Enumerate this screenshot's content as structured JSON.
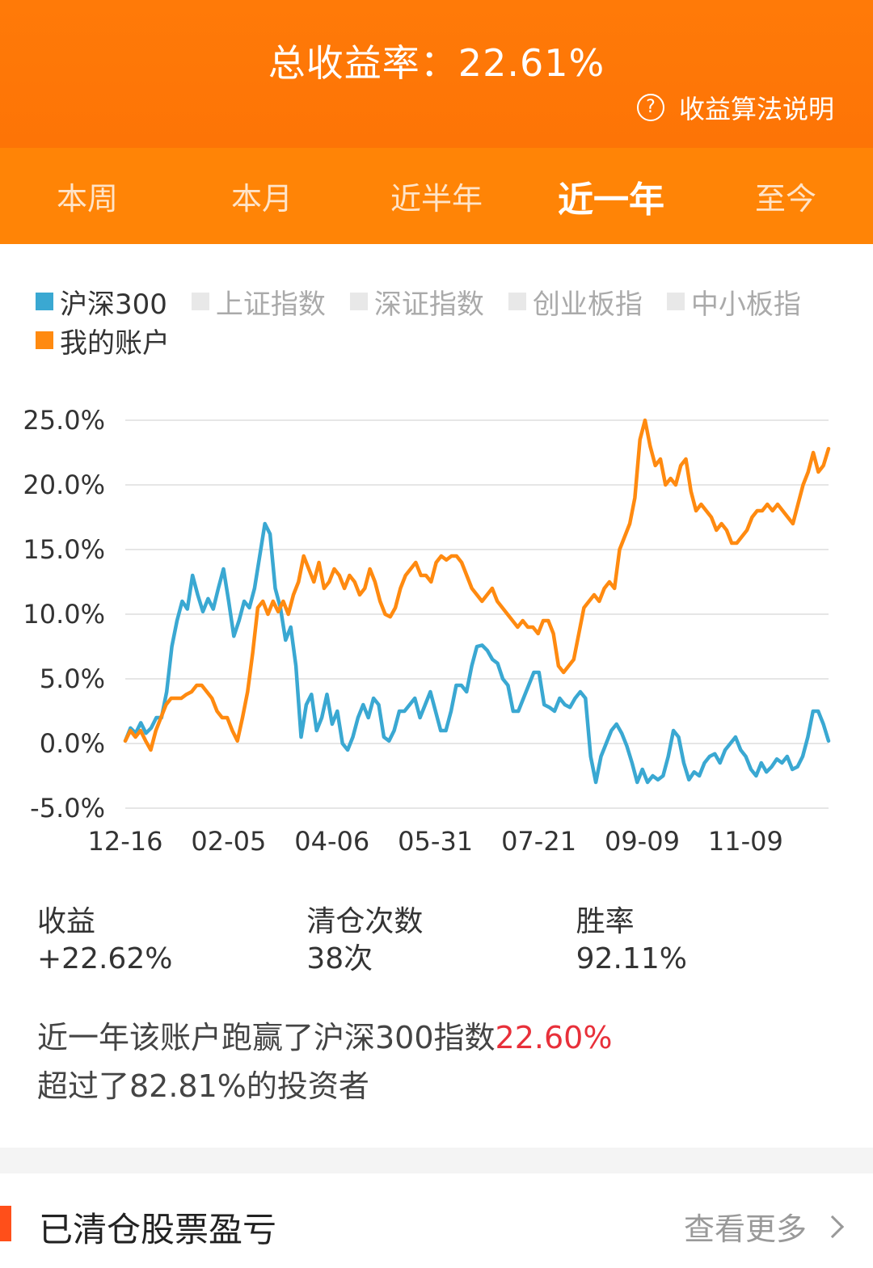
{
  "header": {
    "total_return_label": "总收益率：22.61%",
    "help_icon": "question-circle-icon",
    "help_text": "收益算法说明"
  },
  "tabs": [
    {
      "label": "本周",
      "active": false
    },
    {
      "label": "本月",
      "active": false
    },
    {
      "label": "近半年",
      "active": false
    },
    {
      "label": "近一年",
      "active": true
    },
    {
      "label": "至今",
      "active": false
    }
  ],
  "legend": {
    "items": [
      {
        "label": "沪深300",
        "color": "#3aa8d2",
        "active": true
      },
      {
        "label": "上证指数",
        "color": "#e8e8e8",
        "active": false
      },
      {
        "label": "深证指数",
        "color": "#e8e8e8",
        "active": false
      },
      {
        "label": "创业板指",
        "color": "#e8e8e8",
        "active": false
      },
      {
        "label": "中小板指",
        "color": "#e8e8e8",
        "active": false
      },
      {
        "label": "我的账户",
        "color": "#ff8a10",
        "active": true
      }
    ]
  },
  "chart_data": {
    "type": "line",
    "title": "",
    "xlabel": "",
    "ylabel": "",
    "ylim": [
      -5,
      25
    ],
    "yticks": [
      "25.0%",
      "20.0%",
      "15.0%",
      "10.0%",
      "5.0%",
      "0.0%",
      "-5.0%"
    ],
    "ytick_values": [
      25,
      20,
      15,
      10,
      5,
      0,
      -5
    ],
    "xticks": [
      "12-16",
      "02-05",
      "04-06",
      "05-31",
      "07-21",
      "09-09",
      "11-09"
    ],
    "xtick_positions": [
      0,
      0.147,
      0.294,
      0.441,
      0.588,
      0.735,
      0.882
    ],
    "grid": true,
    "series": [
      {
        "name": "沪深300",
        "color": "#3aa8d2",
        "values": [
          0.2,
          1.2,
          0.8,
          1.6,
          0.8,
          1.2,
          2.0,
          2.0,
          4.0,
          7.5,
          9.5,
          11.0,
          10.4,
          13.0,
          11.5,
          10.2,
          11.2,
          10.4,
          12.0,
          13.5,
          11.0,
          8.3,
          9.5,
          11.0,
          10.5,
          12.0,
          14.5,
          17.0,
          16.2,
          12.0,
          10.5,
          8.0,
          9.0,
          6.0,
          0.5,
          3.0,
          3.8,
          1.0,
          2.0,
          3.8,
          1.5,
          2.5,
          0.0,
          -0.5,
          0.5,
          2.0,
          3.0,
          2.0,
          3.5,
          3.0,
          0.5,
          0.2,
          1.0,
          2.5,
          2.5,
          3.0,
          3.5,
          2.0,
          3.0,
          4.0,
          2.5,
          1.0,
          1.0,
          2.5,
          4.5,
          4.5,
          4.0,
          6.0,
          7.5,
          7.6,
          7.2,
          6.5,
          6.2,
          5.0,
          4.5,
          2.5,
          2.5,
          3.5,
          4.5,
          5.5,
          5.5,
          3.0,
          2.8,
          2.5,
          3.5,
          3.0,
          2.8,
          3.5,
          4.0,
          3.5,
          -1.0,
          -3.0,
          -1.0,
          0.0,
          1.0,
          1.5,
          0.8,
          -0.2,
          -1.5,
          -3.0,
          -2.0,
          -3.0,
          -2.5,
          -2.8,
          -2.5,
          -1.0,
          1.0,
          0.5,
          -1.5,
          -2.8,
          -2.2,
          -2.5,
          -1.5,
          -1.0,
          -0.8,
          -1.5,
          -0.5,
          0.0,
          0.5,
          -0.5,
          -1.0,
          -2.0,
          -2.5,
          -1.5,
          -2.2,
          -1.8,
          -1.2,
          -1.5,
          -1.0,
          -2.0,
          -1.8,
          -1.0,
          0.5,
          2.5,
          2.5,
          1.5,
          0.2
        ]
      },
      {
        "name": "我的账户",
        "color": "#ff8a10",
        "values": [
          0.2,
          1.0,
          0.5,
          1.0,
          0.2,
          -0.5,
          1.0,
          2.0,
          3.0,
          3.5,
          3.5,
          3.5,
          3.8,
          4.0,
          4.5,
          4.5,
          4.0,
          3.5,
          2.5,
          2.0,
          2.0,
          1.0,
          0.2,
          2.0,
          4.0,
          7.0,
          10.5,
          11.0,
          10.0,
          11.0,
          10.2,
          11.0,
          10.0,
          11.5,
          12.5,
          14.5,
          13.5,
          12.5,
          14.0,
          12.0,
          12.5,
          13.5,
          13.0,
          12.0,
          13.0,
          12.5,
          11.5,
          12.0,
          13.5,
          12.5,
          11.0,
          10.0,
          9.8,
          10.5,
          12.0,
          13.0,
          13.5,
          14.0,
          13.0,
          13.0,
          12.5,
          14.0,
          14.5,
          14.2,
          14.5,
          14.5,
          14.0,
          13.0,
          12.0,
          11.5,
          11.0,
          11.5,
          12.0,
          11.0,
          10.5,
          10.0,
          9.5,
          9.0,
          9.5,
          9.0,
          9.0,
          8.5,
          9.5,
          9.5,
          8.5,
          6.0,
          5.5,
          6.0,
          6.5,
          8.5,
          10.5,
          11.0,
          11.5,
          11.0,
          12.0,
          12.5,
          12.0,
          15.0,
          16.0,
          17.0,
          19.0,
          23.5,
          25.0,
          23.0,
          21.5,
          22.0,
          20.0,
          20.5,
          20.0,
          21.5,
          22.0,
          19.5,
          18.0,
          18.5,
          18.0,
          17.5,
          16.5,
          17.0,
          16.5,
          15.5,
          15.5,
          16.0,
          16.5,
          17.5,
          18.0,
          18.0,
          18.5,
          18.0,
          18.5,
          18.0,
          17.5,
          17.0,
          18.5,
          20.0,
          21.0,
          22.5,
          21.0,
          21.5,
          22.8
        ]
      }
    ]
  },
  "stats": [
    {
      "label": "收益",
      "value": "+22.62%"
    },
    {
      "label": "清仓次数",
      "value": "38次"
    },
    {
      "label": "胜率",
      "value": "92.11%"
    }
  ],
  "summary": {
    "line1_prefix": "近一年该账户跑赢了沪深300指数",
    "line1_highlight": "22.60%",
    "line2": "超过了82.81%的投资者"
  },
  "section": {
    "title": "已清仓股票盈亏",
    "more": "查看更多",
    "more_icon": "chevron-right-icon"
  }
}
